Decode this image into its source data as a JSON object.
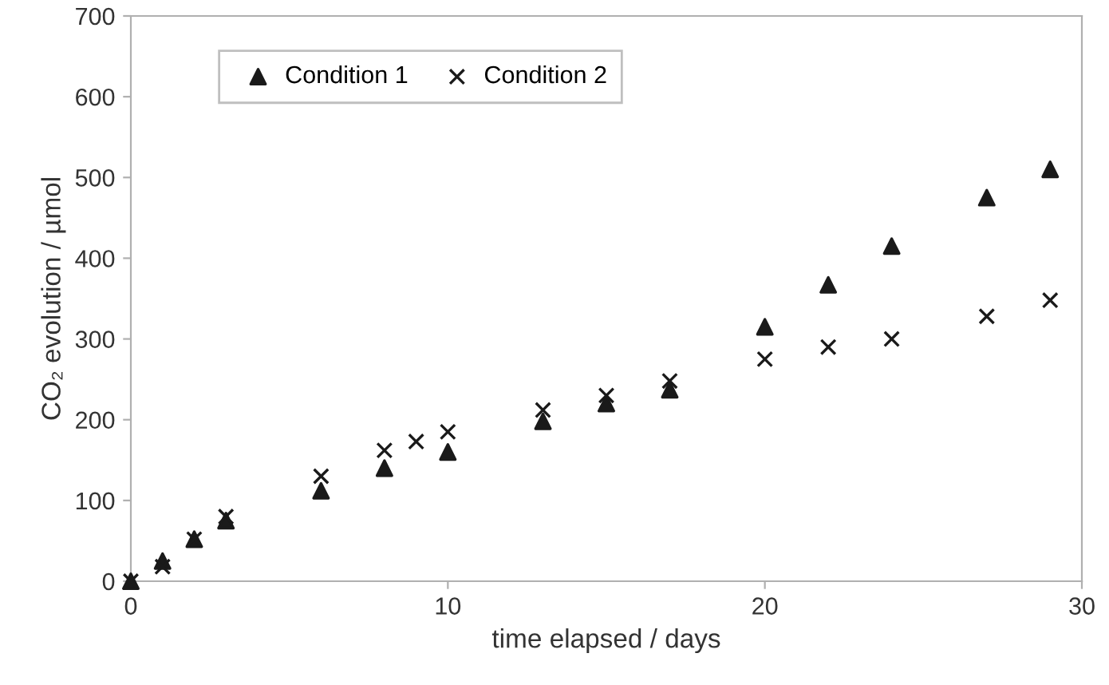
{
  "chart_data": {
    "type": "scatter",
    "xlabel": "time elapsed / days",
    "ylabel": "CO₂ evolution / µmol",
    "xlim": [
      0,
      30
    ],
    "xticks": [
      0,
      10,
      20,
      30
    ],
    "ylim": [
      0,
      700
    ],
    "yticks": [
      0,
      100,
      200,
      300,
      400,
      500,
      600,
      700
    ],
    "grid": false,
    "legend": "top left",
    "series": [
      {
        "name": "Condition 1",
        "color": "#1a1a1a",
        "marker": "triangle",
        "x": [
          0,
          1,
          2,
          3,
          6,
          8,
          10,
          13,
          15,
          17,
          20,
          22,
          24,
          27,
          29
        ],
        "values": [
          0,
          25,
          52,
          75,
          112,
          140,
          160,
          198,
          220,
          237,
          315,
          367,
          415,
          475,
          510
        ]
      },
      {
        "name": "Condition 2",
        "color": "#1a1a1a",
        "marker": "cross",
        "x": [
          0,
          1,
          2,
          3,
          6,
          8,
          9,
          10,
          13,
          15,
          17,
          20,
          22,
          24,
          27,
          29
        ],
        "values": [
          0,
          18,
          52,
          80,
          130,
          162,
          173,
          185,
          212,
          230,
          248,
          275,
          290,
          300,
          328,
          348
        ]
      }
    ]
  }
}
